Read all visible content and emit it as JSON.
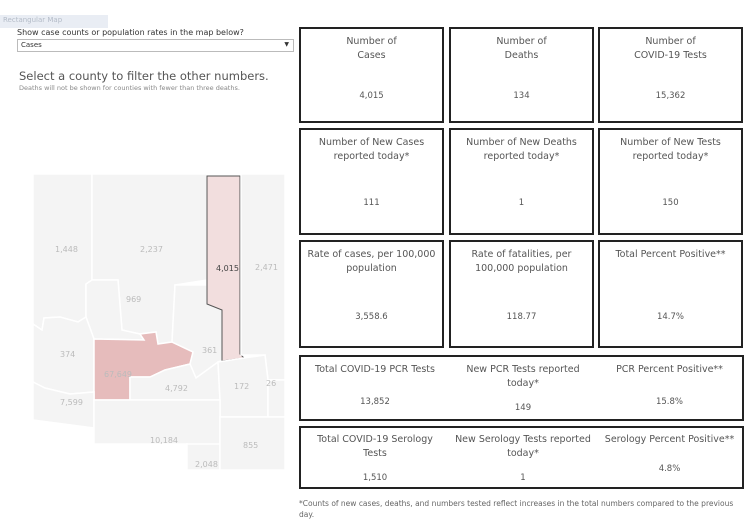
{
  "header": {
    "tab_label": "Rectangular Map"
  },
  "filter": {
    "label": "Show case counts or population rates in the map below?",
    "selected": "Cases"
  },
  "map_panel": {
    "headline": "Select a county to filter the other numbers.",
    "note": "Deaths will not be shown for counties with fewer than three deaths.",
    "counties": {
      "mohave": "1,448",
      "coconino": "2,237",
      "navajo": "4,015",
      "apache": "2,471",
      "yavapai": "969",
      "lapaz": "374",
      "maricopa": "67,649",
      "gila": "361",
      "yuma": "7,599",
      "pinal": "4,792",
      "graham": "172",
      "greenlee": "26",
      "pima": "10,184",
      "santacruz": "2,048",
      "cochise": "855"
    },
    "colors": {
      "selected": "#f2dede",
      "maricopa": "#e6bcbc",
      "default": "#f4f4f4",
      "border": "#ffffff"
    }
  },
  "stats": {
    "cases": {
      "title": "Number of\nCases",
      "value": "4,015"
    },
    "deaths": {
      "title": "Number of\nDeaths",
      "value": "134"
    },
    "tests": {
      "title": "Number of\nCOVID-19 Tests",
      "value": "15,362"
    },
    "new_cases": {
      "title": "Number of New Cases\nreported today*",
      "value": "111"
    },
    "new_deaths": {
      "title": "Number of New Deaths\nreported today*",
      "value": "1"
    },
    "new_tests": {
      "title": "Number of New Tests\nreported today*",
      "value": "150"
    },
    "case_rate": {
      "title": "Rate of cases, per 100,000\npopulation",
      "value": "3,558.6"
    },
    "fatality_rate": {
      "title": "Rate of fatalities, per\n100,000 population",
      "value": "118.77"
    },
    "pct_positive": {
      "title": "Total Percent Positive**",
      "value": "14.7%"
    },
    "pcr_total": {
      "title": "Total COVID-19 PCR Tests",
      "value": "13,852"
    },
    "pcr_new": {
      "title": "New PCR Tests reported\ntoday*",
      "value": "149"
    },
    "pcr_pct": {
      "title": "PCR Percent Positive**",
      "value": "15.8%"
    },
    "sero_total": {
      "title": "Total COVID-19 Serology\nTests",
      "value": "1,510"
    },
    "sero_new": {
      "title": "New Serology Tests reported\ntoday*",
      "value": "1"
    },
    "sero_pct": {
      "title": "Serology Percent Positive**",
      "value": "4.8%"
    }
  },
  "footnote": "*Counts of new cases, deaths, and numbers tested reflect increases in the total numbers compared to the previous day."
}
